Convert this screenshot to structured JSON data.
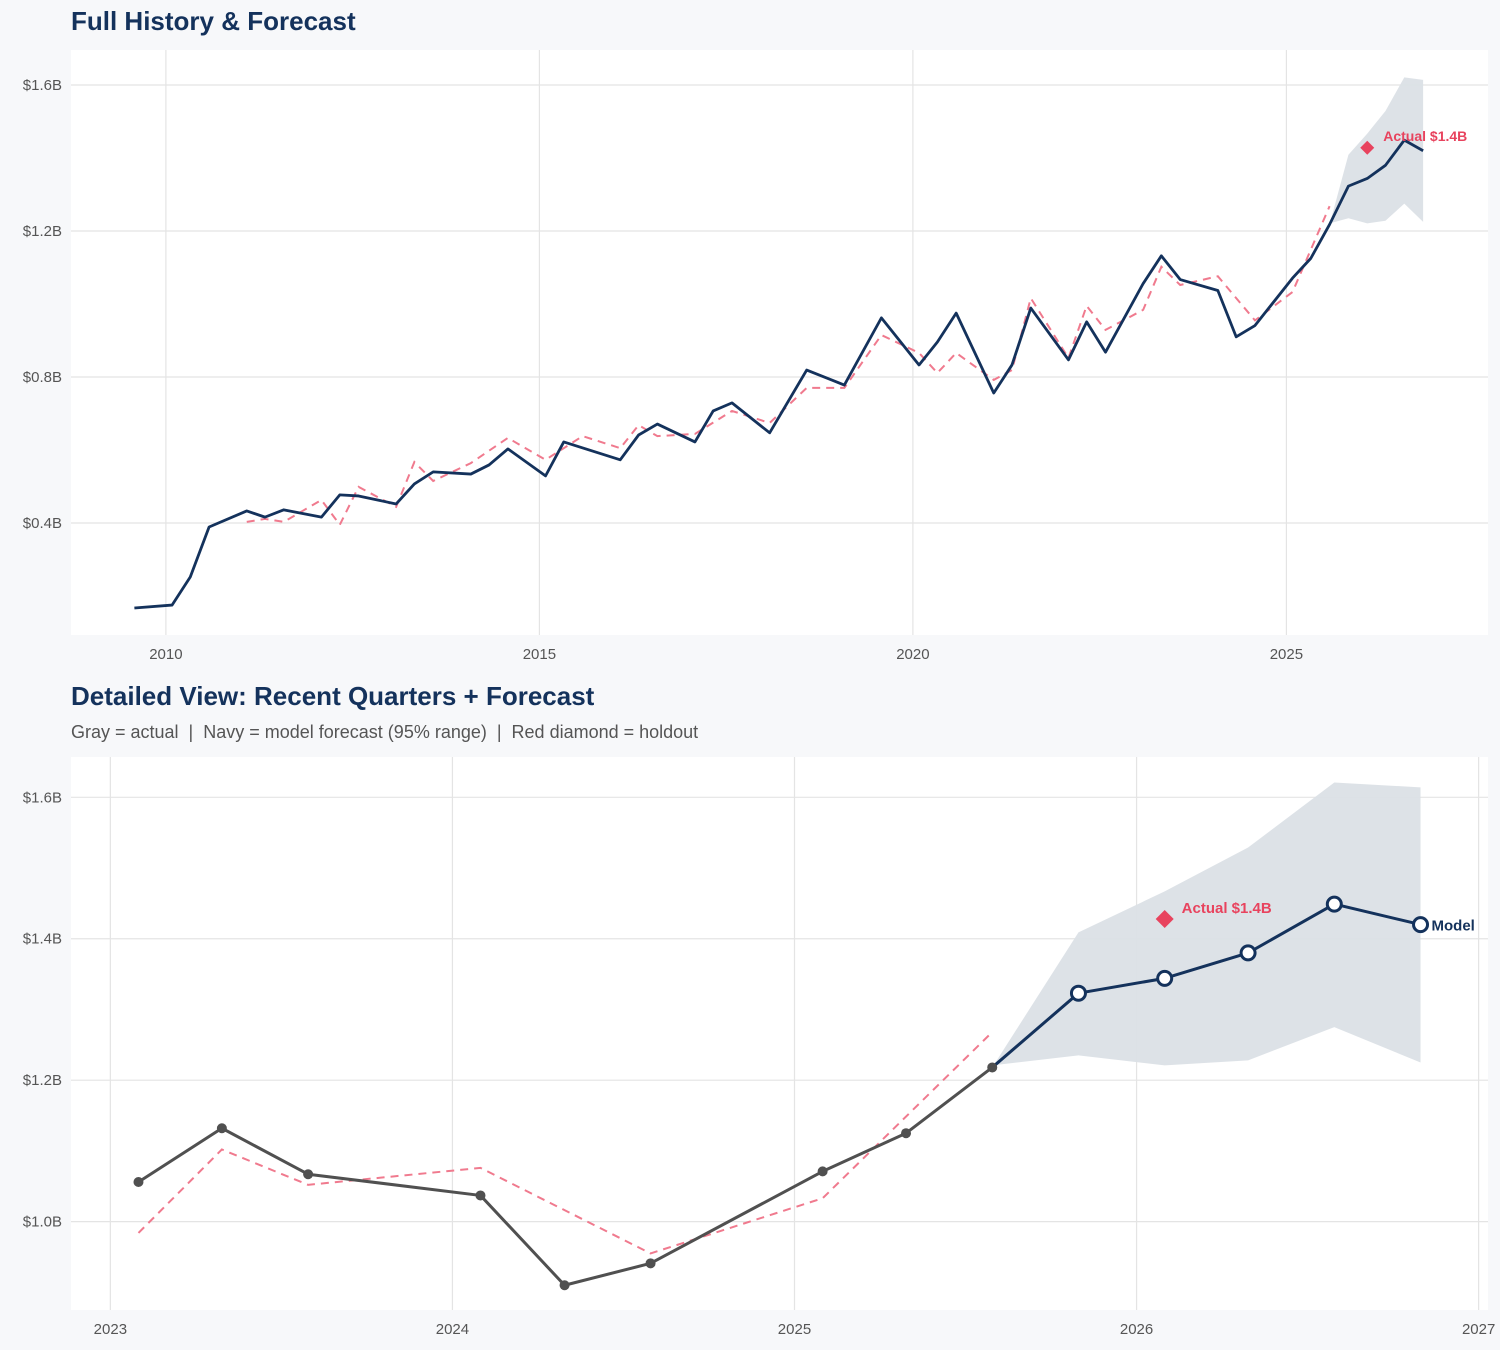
{
  "colors": {
    "navy": "#14325c",
    "actual_gray": "#505050",
    "fitted_red": "#f07a8e",
    "holdout_red": "#e8435e",
    "range_band": "#dbe0e6",
    "grid": "#e4e4e4"
  },
  "chart_data": [
    {
      "type": "line",
      "title": "Full History & Forecast",
      "x_ticks": [
        "2010",
        "2015",
        "2020",
        "2025"
      ],
      "y_ticks": [
        {
          "value": 0.4,
          "label": "$0.4B"
        },
        {
          "value": 0.8,
          "label": "$0.8B"
        },
        {
          "value": 1.2,
          "label": "$1.2B"
        },
        {
          "value": 1.6,
          "label": "$1.6B"
        }
      ],
      "xlim": [
        "2008-09-24",
        "2027-09-13"
      ],
      "ylim": [
        0.093,
        1.696
      ],
      "grid": true,
      "markers": false,
      "actual": [
        [
          "2009-07-31",
          0.167
        ],
        [
          "2010-01-31",
          0.175
        ],
        [
          "2010-04-30",
          0.252
        ],
        [
          "2010-07-31",
          0.389
        ],
        [
          "2011-01-31",
          0.433
        ],
        [
          "2011-04-30",
          0.416
        ],
        [
          "2011-07-31",
          0.436
        ],
        [
          "2012-01-31",
          0.416
        ],
        [
          "2012-04-30",
          0.477
        ],
        [
          "2012-07-31",
          0.474
        ],
        [
          "2013-01-31",
          0.452
        ],
        [
          "2013-04-30",
          0.507
        ],
        [
          "2013-07-31",
          0.54
        ],
        [
          "2014-01-31",
          0.534
        ],
        [
          "2014-04-30",
          0.559
        ],
        [
          "2014-07-31",
          0.603
        ],
        [
          "2015-01-31",
          0.529
        ],
        [
          "2015-04-30",
          0.622
        ],
        [
          "2016-01-31",
          0.573
        ],
        [
          "2016-04-30",
          0.641
        ],
        [
          "2016-07-31",
          0.671
        ],
        [
          "2017-01-31",
          0.622
        ],
        [
          "2017-04-30",
          0.707
        ],
        [
          "2017-07-31",
          0.729
        ],
        [
          "2018-01-31",
          0.647
        ],
        [
          "2018-07-31",
          0.819
        ],
        [
          "2019-01-31",
          0.778
        ],
        [
          "2019-07-31",
          0.962
        ],
        [
          "2020-01-31",
          0.833
        ],
        [
          "2020-04-30",
          0.896
        ],
        [
          "2020-07-31",
          0.975
        ],
        [
          "2021-01-31",
          0.756
        ],
        [
          "2021-04-30",
          0.833
        ],
        [
          "2021-07-31",
          0.989
        ],
        [
          "2022-01-31",
          0.847
        ],
        [
          "2022-04-30",
          0.951
        ],
        [
          "2022-07-31",
          0.868
        ],
        [
          "2023-01-31",
          1.056
        ],
        [
          "2023-04-30",
          1.132
        ],
        [
          "2023-07-31",
          1.067
        ],
        [
          "2024-01-31",
          1.037
        ],
        [
          "2024-04-30",
          0.91
        ],
        [
          "2024-07-31",
          0.941
        ],
        [
          "2025-01-31",
          1.071
        ],
        [
          "2025-04-30",
          1.125
        ],
        [
          "2025-07-31",
          1.218
        ]
      ],
      "fitted": [
        [
          "2011-01-31",
          0.403
        ],
        [
          "2011-04-30",
          0.411
        ],
        [
          "2011-07-31",
          0.403
        ],
        [
          "2012-01-31",
          0.463
        ],
        [
          "2012-04-30",
          0.395
        ],
        [
          "2012-07-31",
          0.499
        ],
        [
          "2013-01-31",
          0.444
        ],
        [
          "2013-04-30",
          0.567
        ],
        [
          "2013-07-31",
          0.515
        ],
        [
          "2014-01-31",
          0.564
        ],
        [
          "2014-07-31",
          0.633
        ],
        [
          "2015-01-31",
          0.573
        ],
        [
          "2015-07-31",
          0.638
        ],
        [
          "2016-01-31",
          0.605
        ],
        [
          "2016-04-30",
          0.668
        ],
        [
          "2016-07-31",
          0.638
        ],
        [
          "2017-01-31",
          0.644
        ],
        [
          "2017-07-31",
          0.707
        ],
        [
          "2018-01-31",
          0.674
        ],
        [
          "2018-07-31",
          0.77
        ],
        [
          "2019-01-31",
          0.77
        ],
        [
          "2019-07-31",
          0.915
        ],
        [
          "2020-01-31",
          0.866
        ],
        [
          "2020-04-30",
          0.811
        ],
        [
          "2020-07-31",
          0.866
        ],
        [
          "2021-01-31",
          0.792
        ],
        [
          "2021-04-30",
          0.819
        ],
        [
          "2021-07-31",
          1.016
        ],
        [
          "2022-01-31",
          0.852
        ],
        [
          "2022-04-30",
          0.995
        ],
        [
          "2022-07-31",
          0.929
        ],
        [
          "2023-01-31",
          0.984
        ],
        [
          "2023-04-30",
          1.102
        ],
        [
          "2023-07-31",
          1.052
        ],
        [
          "2024-01-31",
          1.076
        ],
        [
          "2024-07-31",
          0.955
        ],
        [
          "2025-01-31",
          1.033
        ],
        [
          "2025-07-31",
          1.268
        ]
      ],
      "forecast": [
        [
          "2025-07-31",
          1.218
        ],
        [
          "2025-10-31",
          1.323
        ],
        [
          "2026-01-31",
          1.344
        ],
        [
          "2026-04-30",
          1.38
        ],
        [
          "2026-07-31",
          1.449
        ],
        [
          "2026-10-31",
          1.42
        ]
      ],
      "forecast_range": [
        [
          "2025-07-31",
          1.221,
          1.218
        ],
        [
          "2025-10-31",
          1.235,
          1.409
        ],
        [
          "2026-01-31",
          1.221,
          1.467
        ],
        [
          "2026-04-30",
          1.228,
          1.529
        ],
        [
          "2026-07-31",
          1.275,
          1.621
        ],
        [
          "2026-10-31",
          1.225,
          1.614
        ]
      ],
      "holdout": {
        "date": "2026-01-31",
        "value": 1.428,
        "label": "Actual $1.4B"
      }
    },
    {
      "type": "line",
      "title": "Detailed View: Recent Quarters + Forecast",
      "subtitle": "Gray = actual  |  Navy = model forecast (95% range)  |  Red diamond = holdout",
      "x_ticks": [
        "2023",
        "2024",
        "2025",
        "2026",
        "2027"
      ],
      "y_ticks": [
        {
          "value": 1.0,
          "label": "$1.0B"
        },
        {
          "value": 1.2,
          "label": "$1.2B"
        },
        {
          "value": 1.4,
          "label": "$1.4B"
        },
        {
          "value": 1.6,
          "label": "$1.6B"
        }
      ],
      "xlim": [
        "2022-11-20",
        "2027-01-11"
      ],
      "ylim": [
        0.875,
        1.657
      ],
      "grid": true,
      "markers": true,
      "actual": [
        [
          "2023-01-31",
          1.056
        ],
        [
          "2023-04-30",
          1.132
        ],
        [
          "2023-07-31",
          1.067
        ],
        [
          "2024-01-31",
          1.037
        ],
        [
          "2024-04-30",
          0.91
        ],
        [
          "2024-07-31",
          0.941
        ],
        [
          "2025-01-31",
          1.071
        ],
        [
          "2025-04-30",
          1.125
        ],
        [
          "2025-07-31",
          1.218
        ]
      ],
      "fitted": [
        [
          "2023-01-31",
          0.984
        ],
        [
          "2023-04-30",
          1.102
        ],
        [
          "2023-07-31",
          1.052
        ],
        [
          "2024-01-31",
          1.076
        ],
        [
          "2024-07-31",
          0.955
        ],
        [
          "2025-01-31",
          1.033
        ],
        [
          "2025-07-31",
          1.268
        ]
      ],
      "forecast": [
        [
          "2025-07-31",
          1.218
        ],
        [
          "2025-10-31",
          1.323
        ],
        [
          "2026-01-31",
          1.344
        ],
        [
          "2026-04-30",
          1.38
        ],
        [
          "2026-07-31",
          1.449
        ],
        [
          "2026-10-31",
          1.42
        ]
      ],
      "forecast_range": [
        [
          "2025-07-31",
          1.221,
          1.218
        ],
        [
          "2025-10-31",
          1.235,
          1.409
        ],
        [
          "2026-01-31",
          1.221,
          1.467
        ],
        [
          "2026-04-30",
          1.228,
          1.529
        ],
        [
          "2026-07-31",
          1.275,
          1.621
        ],
        [
          "2026-10-31",
          1.225,
          1.614
        ]
      ],
      "holdout": {
        "date": "2026-01-31",
        "value": 1.428,
        "label": "Actual $1.4B"
      },
      "end_label": "Model"
    }
  ]
}
